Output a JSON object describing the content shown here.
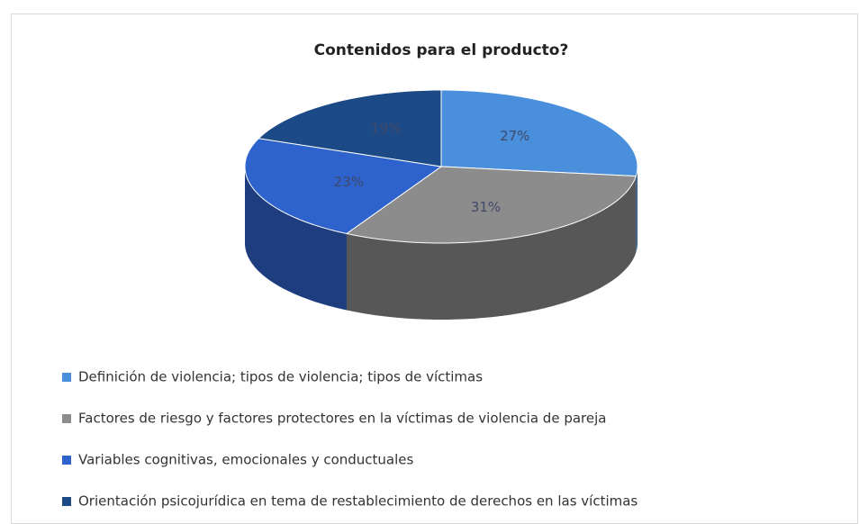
{
  "chart_data": {
    "type": "pie",
    "title": "Contenidos para el producto?",
    "categories": [
      "Definición de violencia; tipos de violencia; tipos de víctimas",
      "Factores de riesgo y factores protectores en la víctimas de violencia de pareja",
      "Variables cognitivas, emocionales y conductuales",
      "Orientación psicojurídica en tema de restablecimiento de derechos en las víctimas"
    ],
    "values": [
      27,
      31,
      23,
      19
    ],
    "value_labels": [
      "27%",
      "31%",
      "23%",
      "19%"
    ],
    "colors": [
      "#4a8fdc",
      "#8c8c8c",
      "#2e62cc",
      "#1c4a86"
    ],
    "legend": "bottom"
  }
}
